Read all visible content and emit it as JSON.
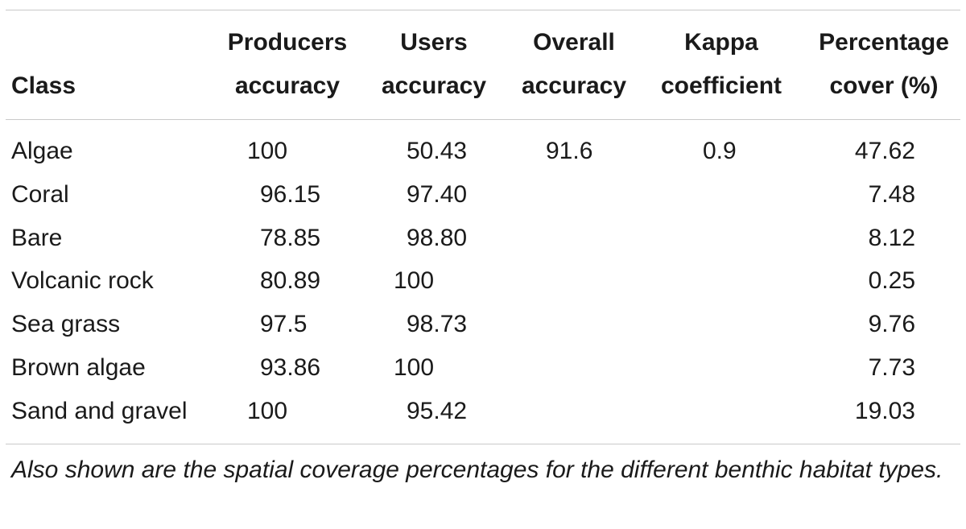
{
  "headers": {
    "class": "Class",
    "producers": [
      "Producers",
      "accuracy"
    ],
    "users": [
      "Users",
      "accuracy"
    ],
    "overall": [
      "Overall",
      "accuracy"
    ],
    "kappa": [
      "Kappa",
      "coefficient"
    ],
    "percentage": [
      "Percentage",
      "cover (%)"
    ]
  },
  "rows": [
    {
      "class": "Algae",
      "producers": "100",
      "users": "50.43",
      "overall": "91.6",
      "kappa": "0.9",
      "percentage": "47.62"
    },
    {
      "class": "Coral",
      "producers": "96.15",
      "users": "97.40",
      "overall": "",
      "kappa": "",
      "percentage": "7.48"
    },
    {
      "class": "Bare",
      "producers": "78.85",
      "users": "98.80",
      "overall": "",
      "kappa": "",
      "percentage": "8.12"
    },
    {
      "class": "Volcanic rock",
      "producers": "80.89",
      "users": "100",
      "overall": "",
      "kappa": "",
      "percentage": "0.25"
    },
    {
      "class": "Sea grass",
      "producers": "97.5",
      "users": "98.73",
      "overall": "",
      "kappa": "",
      "percentage": "9.76"
    },
    {
      "class": "Brown algae",
      "producers": "93.86",
      "users": "100",
      "overall": "",
      "kappa": "",
      "percentage": "7.73"
    },
    {
      "class": "Sand and gravel",
      "producers": "100",
      "users": "95.42",
      "overall": "",
      "kappa": "",
      "percentage": "19.03"
    }
  ],
  "caption": "Also shown are the spatial coverage percentages for the different benthic habitat types."
}
